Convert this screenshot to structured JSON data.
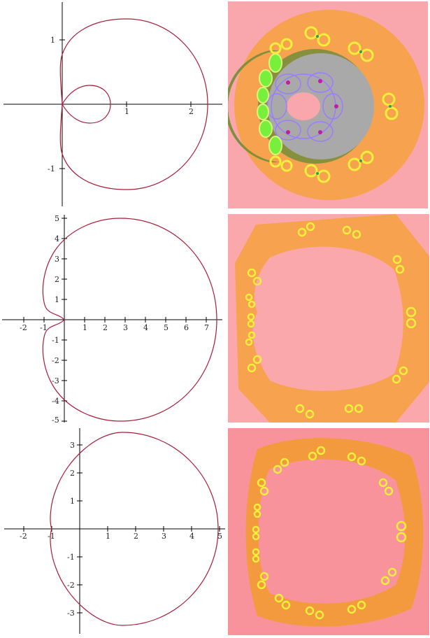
{
  "plots": [
    {
      "id": "limacon-inner-loop",
      "x_ticks": [
        "1",
        "2"
      ],
      "y_ticks": [
        "1",
        "-1"
      ]
    },
    {
      "id": "cardioid-dimpled",
      "x_ticks": [
        "-2",
        "-1",
        "1",
        "2",
        "3",
        "4",
        "5",
        "6",
        "7"
      ],
      "y_ticks": [
        "5",
        "4",
        "3",
        "2",
        "1",
        "-1",
        "-2",
        "-3",
        "-4",
        "-5"
      ]
    },
    {
      "id": "limacon-convex",
      "x_ticks": [
        "-2",
        "-1",
        "1",
        "2",
        "3",
        "4",
        "5"
      ],
      "y_ticks": [
        "3",
        "2",
        "1",
        "-1",
        "-2",
        "-3"
      ]
    }
  ],
  "colors": {
    "curve": "#a81c3a",
    "axis": "#000000",
    "panel_bg_1": "#f9a7ac",
    "panel_bg_2": "#fba8ad",
    "panel_bg_3": "#f8939b",
    "ring_orange": "#f7a24f",
    "ring_orange_dark": "#f39a3e",
    "dark_olive": "#7b8f3e",
    "gray": "#a9a9aa",
    "yellow": "#f3ef3a",
    "green": "#78ef3a",
    "violet": "#9b7cff"
  },
  "icons": {
    "fractal_1": "julia-set-ring-with-inner-disk",
    "fractal_2": "julia-set-ring",
    "fractal_3": "julia-set-ring-dark"
  }
}
